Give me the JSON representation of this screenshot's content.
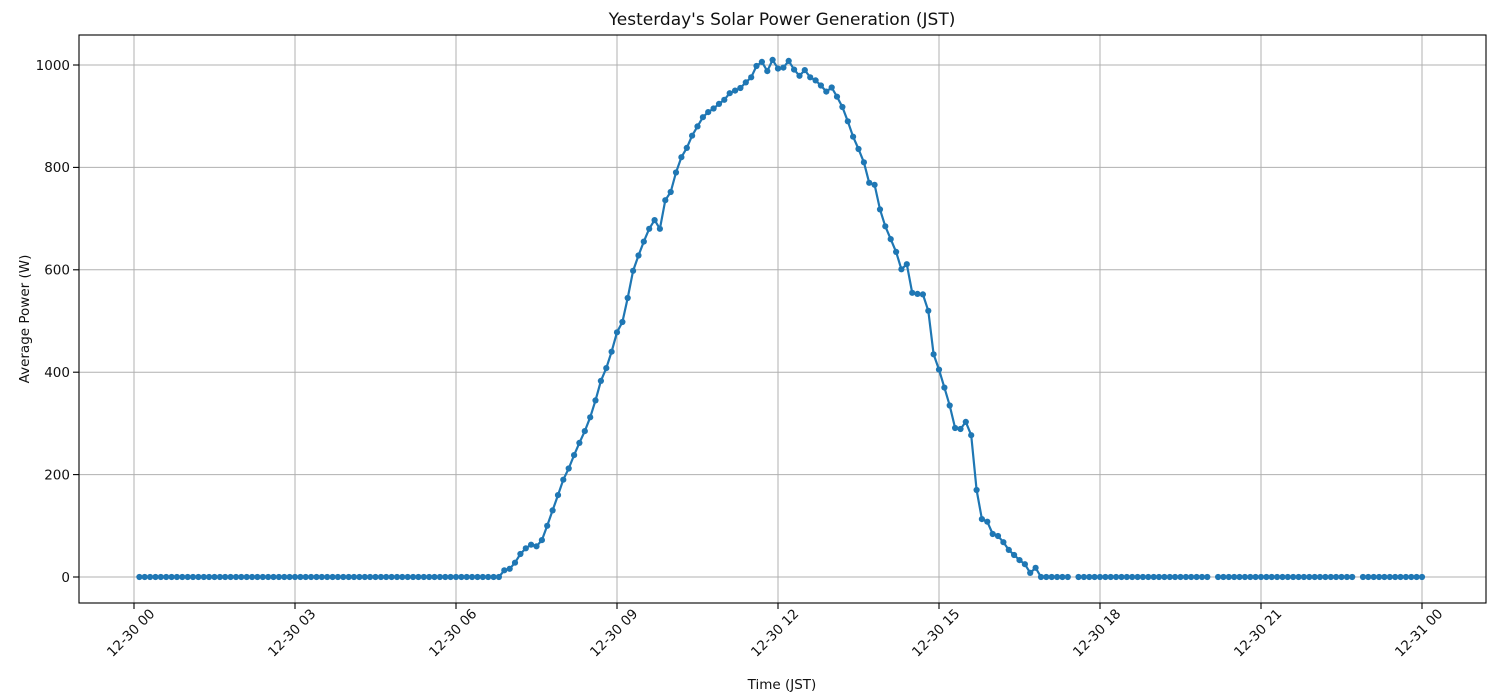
{
  "chart_data": {
    "type": "line",
    "title": "Yesterday's Solar Power Generation (JST)",
    "xlabel": "Time (JST)",
    "ylabel": "Average Power (W)",
    "x_tick_labels": [
      "12-30 00",
      "12-30 03",
      "12-30 06",
      "12-30 09",
      "12-30 12",
      "12-30 15",
      "12-30 18",
      "12-30 21",
      "12-31 00"
    ],
    "x_tick_hours": [
      0,
      3,
      6,
      9,
      12,
      15,
      18,
      21,
      24
    ],
    "y_ticks": [
      0,
      200,
      400,
      600,
      800,
      1000
    ],
    "ylim": [
      -51,
      1059
    ],
    "xlim_hours": [
      -1.03,
      25.19
    ],
    "grid": true,
    "legend": "none",
    "line_color": "#1f77b4",
    "marker": "o",
    "grid_color": "#b0b0b0",
    "axis_color": "#000000",
    "series": [
      {
        "name": "solar_power_w",
        "time_start": "12-30 00:06",
        "time_step_minutes": 6,
        "values": [
          0,
          0,
          0,
          0,
          0,
          0,
          0,
          0,
          0,
          0,
          0,
          0,
          0,
          0,
          0,
          0,
          0,
          0,
          0,
          0,
          0,
          0,
          0,
          0,
          0,
          0,
          0,
          0,
          0,
          0,
          0,
          0,
          0,
          0,
          0,
          0,
          0,
          0,
          0,
          0,
          0,
          0,
          0,
          0,
          0,
          0,
          0,
          0,
          0,
          0,
          0,
          0,
          0,
          0,
          0,
          0,
          0,
          0,
          0,
          0,
          0,
          0,
          0,
          0,
          0,
          0,
          0,
          0,
          13,
          16,
          28,
          45,
          56,
          63,
          60,
          72,
          100,
          130,
          160,
          190,
          212,
          238,
          262,
          285,
          312,
          345,
          383,
          408,
          440,
          478,
          498,
          545,
          598,
          628,
          655,
          680,
          697,
          680,
          736,
          752,
          790,
          820,
          838,
          862,
          880,
          898,
          908,
          915,
          924,
          932,
          945,
          950,
          955,
          966,
          976,
          998,
          1006,
          988,
          1010,
          993,
          995,
          1008,
          991,
          979,
          990,
          976,
          970,
          960,
          948,
          956,
          938,
          918,
          890,
          860,
          836,
          810,
          770,
          766,
          718,
          685,
          660,
          635,
          601,
          611,
          555,
          553,
          552,
          520,
          435,
          405,
          370,
          335,
          291,
          289,
          303,
          277,
          170,
          113,
          108,
          84,
          80,
          68,
          53,
          43,
          33,
          25,
          8,
          18,
          0,
          0,
          0,
          0,
          0,
          0,
          null,
          0,
          0,
          0,
          0,
          0,
          0,
          0,
          0,
          0,
          0,
          0,
          0,
          0,
          0,
          0,
          0,
          0,
          0,
          0,
          0,
          0,
          0,
          0,
          0,
          0,
          null,
          0,
          0,
          0,
          0,
          0,
          0,
          0,
          0,
          0,
          0,
          0,
          0,
          0,
          0,
          0,
          0,
          0,
          0,
          0,
          0,
          0,
          0,
          0,
          0,
          0,
          0,
          null,
          0,
          0,
          0,
          0,
          0,
          0,
          0,
          0,
          0,
          0,
          0,
          0
        ]
      }
    ]
  }
}
